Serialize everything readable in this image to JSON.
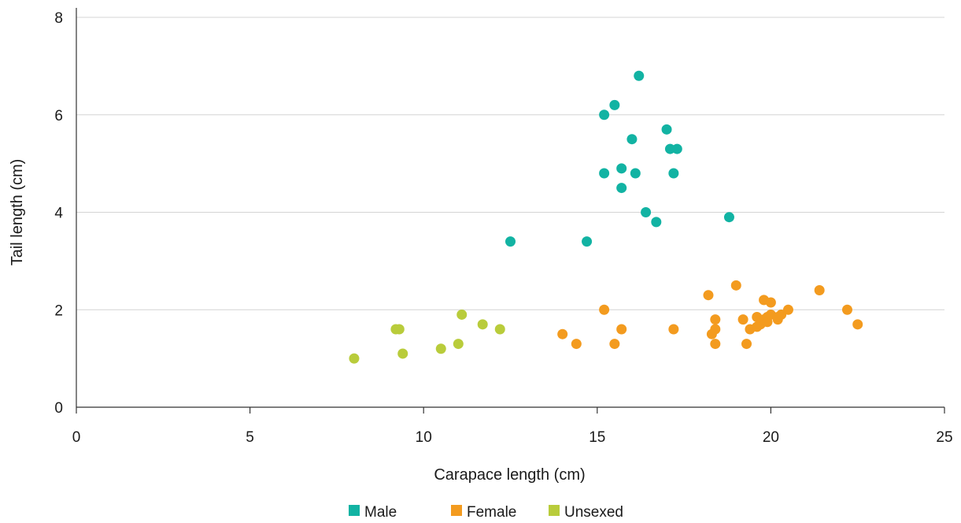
{
  "chart_data": {
    "type": "scatter",
    "title": "",
    "xlabel": "Carapace length (cm)",
    "ylabel": "Tail length (cm)",
    "xlim": [
      0,
      25
    ],
    "ylim": [
      0,
      8
    ],
    "x_ticks": [
      0,
      5,
      10,
      15,
      20,
      25
    ],
    "y_ticks": [
      0,
      2,
      4,
      6,
      8
    ],
    "grid": "horizontal",
    "legend_position": "bottom",
    "series": [
      {
        "name": "Male",
        "color": "#12b3a3",
        "points": [
          [
            12.5,
            3.4
          ],
          [
            14.7,
            3.4
          ],
          [
            15.2,
            6.0
          ],
          [
            15.2,
            4.8
          ],
          [
            15.5,
            6.2
          ],
          [
            15.7,
            4.9
          ],
          [
            15.7,
            4.5
          ],
          [
            16.0,
            5.5
          ],
          [
            16.1,
            4.8
          ],
          [
            16.2,
            6.8
          ],
          [
            16.4,
            4.0
          ],
          [
            16.7,
            3.8
          ],
          [
            17.0,
            5.7
          ],
          [
            17.1,
            5.3
          ],
          [
            17.2,
            4.8
          ],
          [
            17.3,
            5.3
          ],
          [
            18.8,
            3.9
          ]
        ]
      },
      {
        "name": "Female",
        "color": "#f39b1f",
        "points": [
          [
            14.0,
            1.5
          ],
          [
            14.4,
            1.3
          ],
          [
            15.2,
            2.0
          ],
          [
            15.5,
            1.3
          ],
          [
            15.7,
            1.6
          ],
          [
            17.2,
            1.6
          ],
          [
            18.2,
            2.3
          ],
          [
            18.3,
            1.5
          ],
          [
            18.4,
            1.8
          ],
          [
            18.4,
            1.6
          ],
          [
            18.4,
            1.3
          ],
          [
            19.0,
            2.5
          ],
          [
            19.2,
            1.8
          ],
          [
            19.3,
            1.3
          ],
          [
            19.4,
            1.6
          ],
          [
            19.6,
            1.85
          ],
          [
            19.6,
            1.65
          ],
          [
            19.7,
            1.7
          ],
          [
            19.8,
            2.2
          ],
          [
            19.8,
            1.8
          ],
          [
            19.9,
            1.85
          ],
          [
            19.9,
            1.75
          ],
          [
            20.0,
            2.15
          ],
          [
            20.0,
            1.9
          ],
          [
            20.2,
            1.8
          ],
          [
            20.2,
            1.85
          ],
          [
            20.3,
            1.9
          ],
          [
            20.5,
            2.0
          ],
          [
            21.4,
            2.4
          ],
          [
            22.2,
            2.0
          ],
          [
            22.5,
            1.7
          ]
        ]
      },
      {
        "name": "Unsexed",
        "color": "#b9cc3b",
        "points": [
          [
            8.0,
            1.0
          ],
          [
            9.2,
            1.6
          ],
          [
            9.3,
            1.6
          ],
          [
            9.4,
            1.1
          ],
          [
            10.5,
            1.2
          ],
          [
            11.0,
            1.3
          ],
          [
            11.1,
            1.9
          ],
          [
            11.7,
            1.7
          ],
          [
            12.2,
            1.6
          ]
        ]
      }
    ]
  }
}
